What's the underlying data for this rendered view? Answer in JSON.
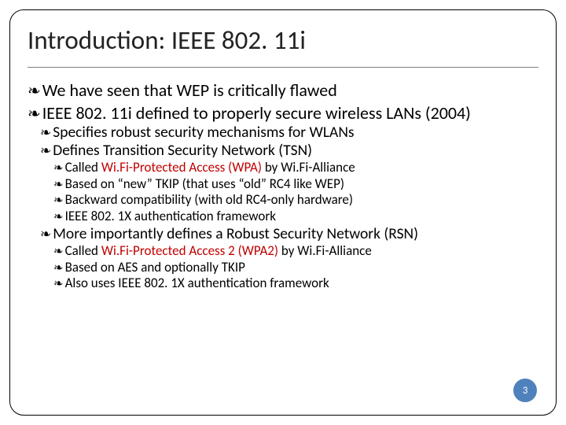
{
  "colors": {
    "border": "#000000",
    "text": "#000000",
    "accent_red": "#c00000",
    "divider": "#7f7f7f",
    "pagenum_bg": "#4f81bd",
    "pagenum_fg": "#ffffff",
    "background": "#ffffff"
  },
  "glyphs": {
    "bullet": "❧"
  },
  "typography": {
    "title_fontsize": 33,
    "lvl1_fontsize": 22,
    "lvl2_fontsize": 19.5,
    "lvl3_fontsize": 17,
    "font_family": "Calibri"
  },
  "layout": {
    "slide_w": 720,
    "slide_h": 540,
    "border_radius": 18,
    "border_width": 1.5,
    "padding": 22
  },
  "title": "Introduction: IEEE 802. 11i",
  "bullets": {
    "a": "We have seen that WEP is critically flawed",
    "b": " IEEE 802. 11i defined to properly secure wireless LANs (2004)",
    "b1": "Specifies robust security mechanisms for WLANs",
    "b2": "Defines Transition Security Network (TSN)",
    "b2a_pre": " Called ",
    "b2a_red": "Wi.Fi-Protected Access (WPA)",
    "b2a_post": " by Wi.Fi-Alliance",
    "b2b": " Based on “new” TKIP (that uses “old” RC4 like WEP)",
    "b2c": " Backward compatibility (with old RC4-only hardware)",
    "b2d": " IEEE 802. 1X authentication framework",
    "b3": "More importantly defines a Robust Security Network (RSN)",
    "b3a_pre": " Called ",
    "b3a_red": "Wi.Fi-Protected Access 2 (WPA2)",
    "b3a_post": " by Wi.Fi-Alliance",
    "b3b": " Based on AES and optionally TKIP",
    "b3c": " Also uses IEEE 802. 1X authentication framework"
  },
  "page_number": "3"
}
